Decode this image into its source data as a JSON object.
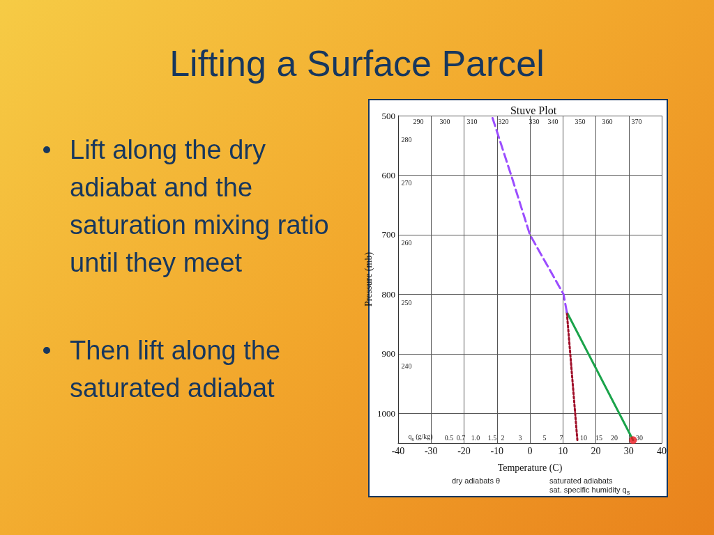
{
  "chart_data": {
    "type": "line",
    "title": "Lifting a Surface Parcel",
    "subtitle": "Stuve Plot",
    "xlabel": "Temperature (C)",
    "ylabel": "Pressure (mb)",
    "xlim": [
      -40,
      40
    ],
    "xticks": [
      -40,
      -30,
      -20,
      -10,
      0,
      10,
      20,
      30,
      40
    ],
    "ylim": [
      1050,
      500
    ],
    "yticks": [
      500,
      600,
      700,
      800,
      900,
      1000
    ],
    "grid": true,
    "series": [
      {
        "color": "#1aa34a",
        "line_style": "solid",
        "x": [
          31.3,
          11.2
        ],
        "values": [
          1045,
          830
        ]
      },
      {
        "color": "#a0102a",
        "line_style": "dotted",
        "x": [
          14.4,
          11.2
        ],
        "values": [
          1045,
          830
        ]
      },
      {
        "color": "#9b4dff",
        "line_style": "dashed",
        "x": [
          11.2,
          10.2,
          0,
          -5.7,
          -11.4
        ],
        "values": [
          830,
          800,
          700,
          600,
          503
        ]
      },
      {
        "type": "scatter",
        "marker": "circle",
        "color": "#e8141c",
        "x": [
          31.3
        ],
        "values": [
          1045
        ]
      }
    ],
    "annotations": [
      "Lift along the dry adiabat and the saturation mixing ratio until they meet",
      "Then lift along the saturated adiabat",
      "dry adiabats θ",
      "saturated adiabats",
      "sat. specific humidity q$_{s}$",
      "290",
      "300",
      "310",
      "320",
      "330",
      "340",
      "350",
      "360",
      "370",
      "280",
      "270",
      "260",
      "250",
      "240",
      "q$_{s}$ (g/kg)",
      "0.5",
      "0.7",
      "1.0",
      "1.5",
      "2",
      "3",
      "5",
      "7",
      "10",
      "15",
      "20",
      "30"
    ]
  }
}
